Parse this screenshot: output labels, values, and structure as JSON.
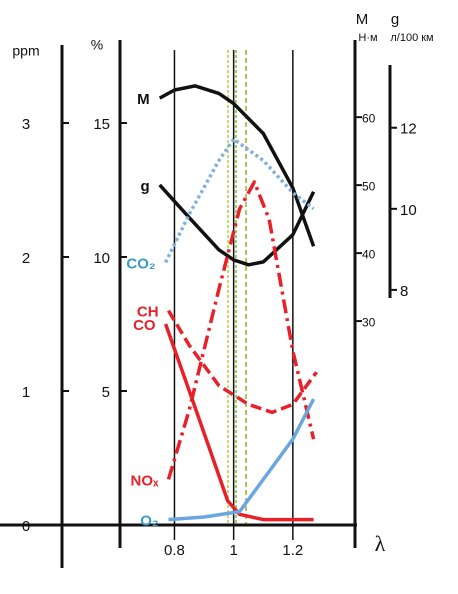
{
  "chart_data": {
    "type": "line",
    "x_label": "λ",
    "xlim": [
      0.42,
      1.41
    ],
    "xticks": [
      0.8,
      1,
      1.2
    ],
    "y_label": "%",
    "ylim": [
      0,
      17.5
    ],
    "yticks": [
      5,
      10,
      15
    ],
    "y2_label": "M",
    "y2_unit": "Н·м",
    "y2lim": [
      0,
      69
    ],
    "y2ticks": [
      30,
      40,
      50,
      60
    ],
    "y3_label": "g",
    "y3_unit": "л/100 км",
    "y3lim": [
      7.8,
      13.4
    ],
    "y3ticks": [
      8,
      10,
      12
    ],
    "y4_label": "ppm",
    "y4lim": [
      0,
      3.5
    ],
    "y4ticks": [
      0,
      1,
      2,
      3
    ],
    "series": [
      {
        "name": "M",
        "color": "#111111",
        "style": "solid",
        "axis": "y2",
        "x": [
          0.75,
          0.8,
          0.87,
          0.95,
          1.0,
          1.1,
          1.2,
          1.27
        ],
        "values": [
          62.8,
          64,
          64.6,
          63.5,
          62,
          57.6,
          49.6,
          41
        ]
      },
      {
        "name": "g",
        "color": "#111111",
        "style": "solid",
        "axis": "y3",
        "x": [
          0.75,
          0.85,
          0.95,
          1.0,
          1.05,
          1.1,
          1.2,
          1.27
        ],
        "values": [
          10.59,
          9.78,
          8.99,
          8.74,
          8.62,
          8.69,
          9.36,
          10.42
        ]
      },
      {
        "name": "CO₂",
        "color": "#7fb0e0",
        "style": "dotted",
        "axis": "y",
        "x": [
          0.77,
          0.85,
          0.95,
          1.0,
          1.1,
          1.2,
          1.27
        ],
        "values": [
          9.8,
          11.6,
          13.6,
          14.4,
          13.6,
          12.4,
          11.8
        ]
      },
      {
        "name": "CH",
        "color": "#e8202a",
        "style": "dashed",
        "axis": "y",
        "x": [
          0.78,
          0.85,
          0.95,
          1.05,
          1.13,
          1.2,
          1.28
        ],
        "values": [
          8.0,
          6.7,
          5.2,
          4.5,
          4.2,
          4.5,
          5.7
        ]
      },
      {
        "name": "CO",
        "color": "#e8202a",
        "style": "solid",
        "axis": "y",
        "x": [
          0.77,
          0.85,
          0.92,
          0.98,
          1.02,
          1.1,
          1.27
        ],
        "values": [
          7.5,
          5.0,
          2.8,
          0.9,
          0.4,
          0.2,
          0.2
        ]
      },
      {
        "name": "NOₓ",
        "color": "#e8202a",
        "style": "dashdot",
        "axis": "y",
        "x": [
          0.78,
          0.85,
          0.95,
          1.02,
          1.07,
          1.12,
          1.2,
          1.27
        ],
        "values": [
          1.7,
          4.3,
          8.8,
          11.8,
          12.8,
          11.4,
          6.5,
          3.2
        ]
      },
      {
        "name": "O₂",
        "color": "#6aa6e0",
        "style": "solid",
        "axis": "y",
        "x": [
          0.78,
          0.9,
          1.02,
          1.1,
          1.2,
          1.27
        ],
        "values": [
          0.2,
          0.3,
          0.5,
          1.7,
          3.2,
          4.7
        ]
      }
    ]
  }
}
